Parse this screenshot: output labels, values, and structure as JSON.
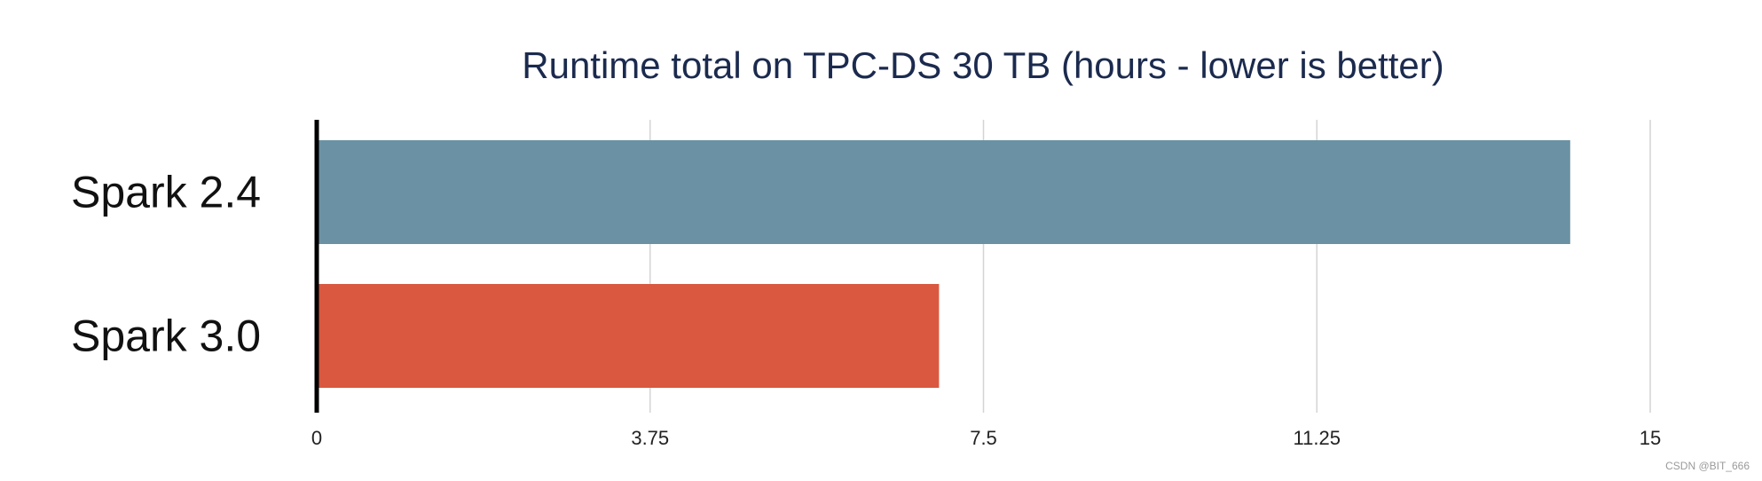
{
  "watermark": "CSDN @BIT_666",
  "chart_data": {
    "type": "bar",
    "orientation": "horizontal",
    "title": "Runtime total on TPC-DS 30 TB (hours - lower is better)",
    "categories": [
      "Spark 2.4",
      "Spark 3.0"
    ],
    "values": [
      14.1,
      7.0
    ],
    "colors": [
      "#6b91a4",
      "#d9583f"
    ],
    "xlim": [
      0,
      15
    ],
    "xticks": [
      0,
      3.75,
      7.5,
      11.25,
      15
    ],
    "xtick_labels": [
      "0",
      "3.75",
      "7.5",
      "11.25",
      "15"
    ],
    "grid": true,
    "legend": "none"
  }
}
